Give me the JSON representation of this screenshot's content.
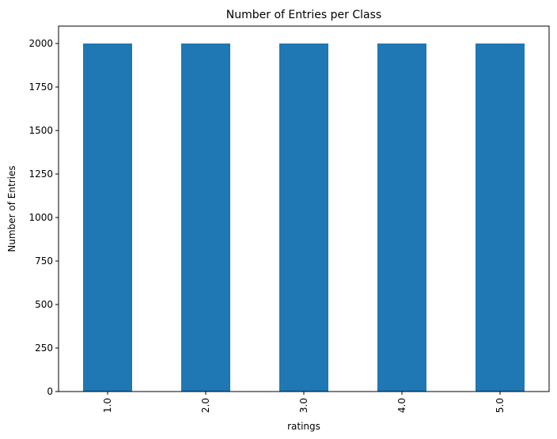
{
  "chart_data": {
    "type": "bar",
    "title": "Number of Entries per Class",
    "xlabel": "ratings",
    "ylabel": "Number of Entries",
    "categories": [
      "1.0",
      "2.0",
      "3.0",
      "4.0",
      "5.0"
    ],
    "values": [
      2000,
      2000,
      2000,
      2000,
      2000
    ],
    "yticks": [
      "0",
      "250",
      "500",
      "750",
      "1000",
      "1250",
      "1500",
      "1750",
      "2000"
    ],
    "ylim": [
      0,
      2100
    ],
    "bar_color": "#1f77b4",
    "grid": false,
    "x_tick_rotation": "vertical"
  }
}
